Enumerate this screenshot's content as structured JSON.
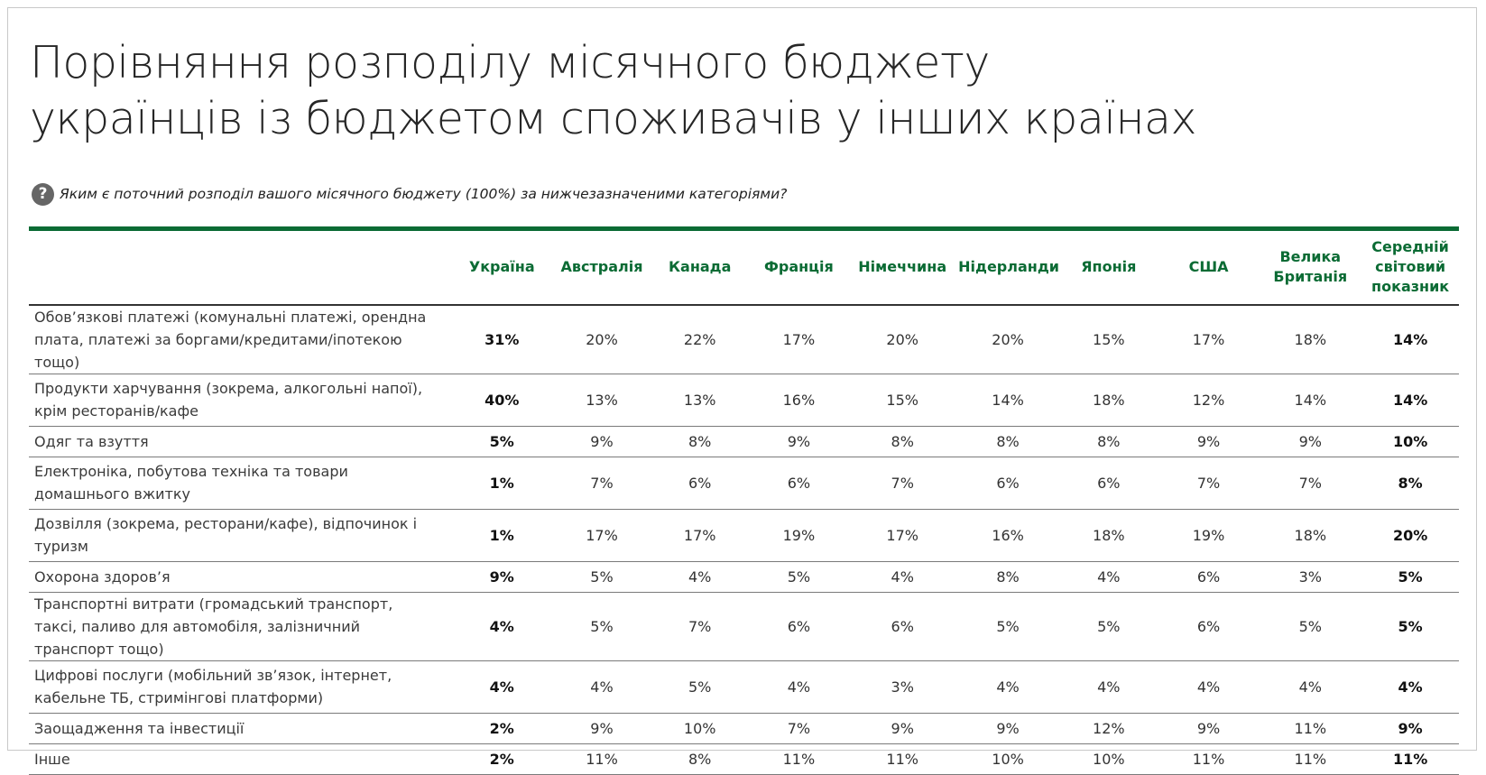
{
  "title_lines": [
    "Порівняння розподілу місячного бюджету",
    "українців із бюджетом споживачів у інших країнах"
  ],
  "question": {
    "icon": "question-circle-icon",
    "text": "Яким є поточний розподіл вашого місячного бюджету (100%) за нижчезазначеними категоріями?"
  },
  "colors": {
    "accent": "#0b6b34",
    "icon_bg": "#666666"
  },
  "chart_data": {
    "type": "table",
    "columns": [
      "Україна",
      "Австралія",
      "Канада",
      "Франція",
      "Німеччина",
      "Нідерланди",
      "Японія",
      "США",
      "Велика Британія",
      "Середній світовий показник"
    ],
    "rows": [
      {
        "category": "Обов’язкові платежі (комунальні платежі, орендна плата, платежі за боргами/кредитами/іпотекою тощо)",
        "values": [
          "31%",
          "20%",
          "22%",
          "17%",
          "20%",
          "20%",
          "15%",
          "17%",
          "18%",
          "14%"
        ]
      },
      {
        "category": "Продукти харчування (зокрема, алкогольні напої), крім ресторанів/кафе",
        "values": [
          "40%",
          "13%",
          "13%",
          "16%",
          "15%",
          "14%",
          "18%",
          "12%",
          "14%",
          "14%"
        ]
      },
      {
        "category": "Одяг та взуття",
        "values": [
          "5%",
          "9%",
          "8%",
          "9%",
          "8%",
          "8%",
          "8%",
          "9%",
          "9%",
          "10%"
        ]
      },
      {
        "category": "Електроніка, побутова техніка та товари домашнього вжитку",
        "values": [
          "1%",
          "7%",
          "6%",
          "6%",
          "7%",
          "6%",
          "6%",
          "7%",
          "7%",
          "8%"
        ]
      },
      {
        "category": "Дозвілля (зокрема, ресторани/кафе), відпочинок і туризм",
        "values": [
          "1%",
          "17%",
          "17%",
          "19%",
          "17%",
          "16%",
          "18%",
          "19%",
          "18%",
          "20%"
        ]
      },
      {
        "category": "Охорона здоров’я",
        "values": [
          "9%",
          "5%",
          "4%",
          "5%",
          "4%",
          "8%",
          "4%",
          "6%",
          "3%",
          "5%"
        ]
      },
      {
        "category": "Транспортні витрати (громадський транспорт, таксі, паливо для автомобіля, залізничний транспорт тощо)",
        "values": [
          "4%",
          "5%",
          "7%",
          "6%",
          "6%",
          "5%",
          "5%",
          "6%",
          "5%",
          "5%"
        ]
      },
      {
        "category": "Цифрові послуги (мобільний зв’язок, інтернет, кабельне ТБ, стримінгові платформи)",
        "values": [
          "4%",
          "4%",
          "5%",
          "4%",
          "3%",
          "4%",
          "4%",
          "4%",
          "4%",
          "4%"
        ]
      },
      {
        "category": "Заощадження та інвестиції",
        "values": [
          "2%",
          "9%",
          "10%",
          "7%",
          "9%",
          "9%",
          "12%",
          "9%",
          "11%",
          "9%"
        ]
      },
      {
        "category": "Інше",
        "values": [
          "2%",
          "11%",
          "8%",
          "11%",
          "11%",
          "10%",
          "10%",
          "11%",
          "11%",
          "11%"
        ]
      }
    ]
  }
}
